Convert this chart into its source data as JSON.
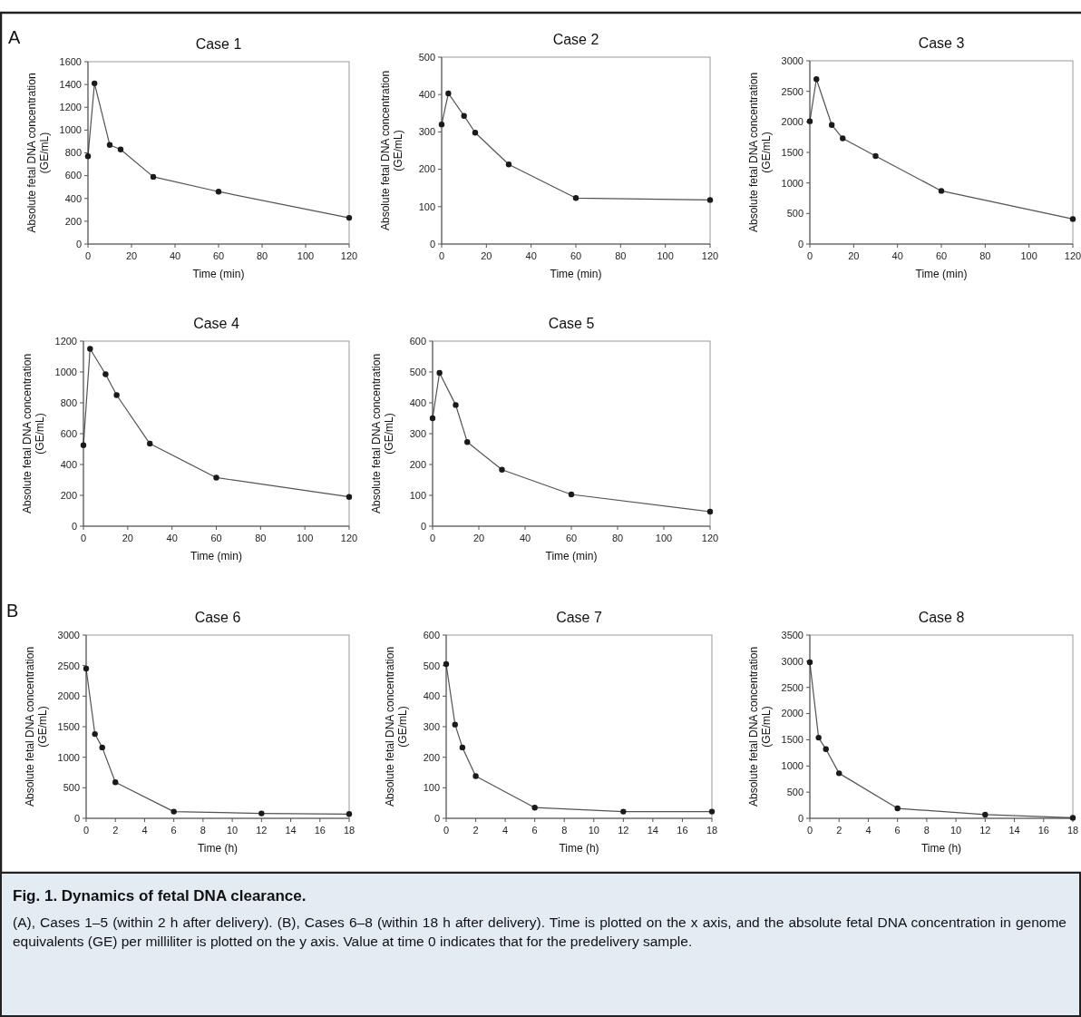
{
  "chart_data": [
    {
      "type": "line",
      "title": "Case 1",
      "xlabel": "Time (min)",
      "ylabel": "Absolute fetal DNA concentration\n(GE/mL)",
      "annotations": [
        "A"
      ],
      "marker": "circle",
      "grid": false,
      "x": [
        0,
        3,
        10,
        15,
        30,
        60,
        120
      ],
      "xlim": [
        0,
        120
      ],
      "xticks": [
        0,
        20,
        40,
        60,
        80,
        100,
        120
      ],
      "ylim": [
        0,
        1600
      ],
      "yticks": [
        0,
        200,
        400,
        600,
        800,
        1000,
        1200,
        1400,
        1600
      ],
      "series": [
        {
          "color": "#1a1a1a",
          "values": [
            770,
            1410,
            870,
            830,
            590,
            460,
            230
          ]
        }
      ]
    },
    {
      "type": "line",
      "title": "Case 2",
      "xlabel": "Time (min)",
      "ylabel": "Absolute fetal DNA concentration\n(GE/mL)",
      "marker": "circle",
      "grid": false,
      "x": [
        0,
        3,
        10,
        15,
        30,
        60,
        120
      ],
      "xlim": [
        0,
        120
      ],
      "xticks": [
        0,
        20,
        40,
        60,
        80,
        100,
        120
      ],
      "ylim": [
        0,
        500
      ],
      "yticks": [
        0,
        100,
        200,
        300,
        400,
        500
      ],
      "series": [
        {
          "color": "#1a1a1a",
          "values": [
            320,
            403,
            343,
            298,
            213,
            123,
            118
          ]
        }
      ]
    },
    {
      "type": "line",
      "title": "Case 3",
      "xlabel": "Time (min)",
      "ylabel": "Absolute fetal DNA concentration\n(GE/mL)",
      "marker": "circle",
      "grid": false,
      "x": [
        0,
        3,
        10,
        15,
        30,
        60,
        120
      ],
      "xlim": [
        0,
        120
      ],
      "xticks": [
        0,
        20,
        40,
        60,
        80,
        100,
        120
      ],
      "ylim": [
        0,
        3000
      ],
      "yticks": [
        0,
        500,
        1000,
        1500,
        2000,
        2500,
        3000
      ],
      "series": [
        {
          "color": "#1a1a1a",
          "values": [
            2010,
            2700,
            1950,
            1730,
            1440,
            870,
            410
          ]
        }
      ]
    },
    {
      "type": "line",
      "title": "Case 4",
      "xlabel": "Time (min)",
      "ylabel": "Absolute fetal DNA concentration\n(GE/mL)",
      "marker": "circle",
      "grid": false,
      "x": [
        0,
        3,
        10,
        15,
        30,
        60,
        120
      ],
      "xlim": [
        0,
        120
      ],
      "xticks": [
        0,
        20,
        40,
        60,
        80,
        100,
        120
      ],
      "ylim": [
        0,
        1200
      ],
      "yticks": [
        0,
        200,
        400,
        600,
        800,
        1000,
        1200
      ],
      "series": [
        {
          "color": "#1a1a1a",
          "values": [
            525,
            1150,
            985,
            850,
            535,
            315,
            190
          ]
        }
      ]
    },
    {
      "type": "line",
      "title": "Case 5",
      "xlabel": "Time (min)",
      "ylabel": "Absolute fetal DNA concentration\n(GE/mL)",
      "marker": "circle",
      "grid": false,
      "x": [
        0,
        3,
        10,
        15,
        30,
        60,
        120
      ],
      "xlim": [
        0,
        120
      ],
      "xticks": [
        0,
        20,
        40,
        60,
        80,
        100,
        120
      ],
      "ylim": [
        0,
        600
      ],
      "yticks": [
        0,
        100,
        200,
        300,
        400,
        500,
        600
      ],
      "series": [
        {
          "color": "#1a1a1a",
          "values": [
            350,
            497,
            393,
            273,
            183,
            103,
            47
          ]
        }
      ]
    },
    {
      "type": "line",
      "title": "Case 6",
      "xlabel": "Time (h)",
      "ylabel": "Absolute fetal DNA concentration\n(GE/mL)",
      "annotations": [
        "B"
      ],
      "marker": "circle",
      "grid": false,
      "x": [
        0,
        0.6,
        1.1,
        2,
        6,
        12,
        18
      ],
      "xlim": [
        0,
        18
      ],
      "xticks": [
        0,
        2,
        4,
        6,
        8,
        10,
        12,
        14,
        16,
        18
      ],
      "ylim": [
        0,
        3000
      ],
      "yticks": [
        0,
        500,
        1000,
        1500,
        2000,
        2500,
        3000
      ],
      "series": [
        {
          "color": "#1a1a1a",
          "values": [
            2450,
            1380,
            1160,
            590,
            110,
            80,
            70
          ]
        }
      ]
    },
    {
      "type": "line",
      "title": "Case 7",
      "xlabel": "Time (h)",
      "ylabel": "Absolute fetal DNA concentration\n(GE/mL)",
      "marker": "circle",
      "grid": false,
      "x": [
        0,
        0.6,
        1.1,
        2,
        6,
        12,
        18
      ],
      "xlim": [
        0,
        18
      ],
      "xticks": [
        0,
        2,
        4,
        6,
        8,
        10,
        12,
        14,
        16,
        18
      ],
      "ylim": [
        0,
        600
      ],
      "yticks": [
        0,
        100,
        200,
        300,
        400,
        500,
        600
      ],
      "series": [
        {
          "color": "#1a1a1a",
          "values": [
            505,
            307,
            232,
            138,
            35,
            22,
            22
          ]
        }
      ]
    },
    {
      "type": "line",
      "title": "Case 8",
      "xlabel": "Time (h)",
      "ylabel": "Absolute fetal DNA concentration\n(GE/mL)",
      "marker": "circle",
      "grid": false,
      "x": [
        0,
        0.6,
        1.1,
        2,
        6,
        12,
        18
      ],
      "xlim": [
        0,
        18
      ],
      "xticks": [
        0,
        2,
        4,
        6,
        8,
        10,
        12,
        14,
        16,
        18
      ],
      "ylim": [
        0,
        3500
      ],
      "yticks": [
        0,
        500,
        1000,
        1500,
        2000,
        2500,
        3000,
        3500
      ],
      "series": [
        {
          "color": "#1a1a1a",
          "values": [
            2980,
            1540,
            1320,
            860,
            190,
            70,
            10
          ]
        }
      ]
    },
    {
      "type": "other",
      "title": "Fig. 1. Dynamics of fetal DNA clearance.",
      "annotations": [
        "(A), Cases 1–5 (within 2 h after delivery). (B), Cases 6–8 (within 18 h after delivery). Time is plotted on the x axis, and the absolute fetal DNA concentration in genome equivalents (GE) per milliliter is plotted on the y axis. Value at time 0 indicates that for the predelivery sample."
      ]
    }
  ]
}
